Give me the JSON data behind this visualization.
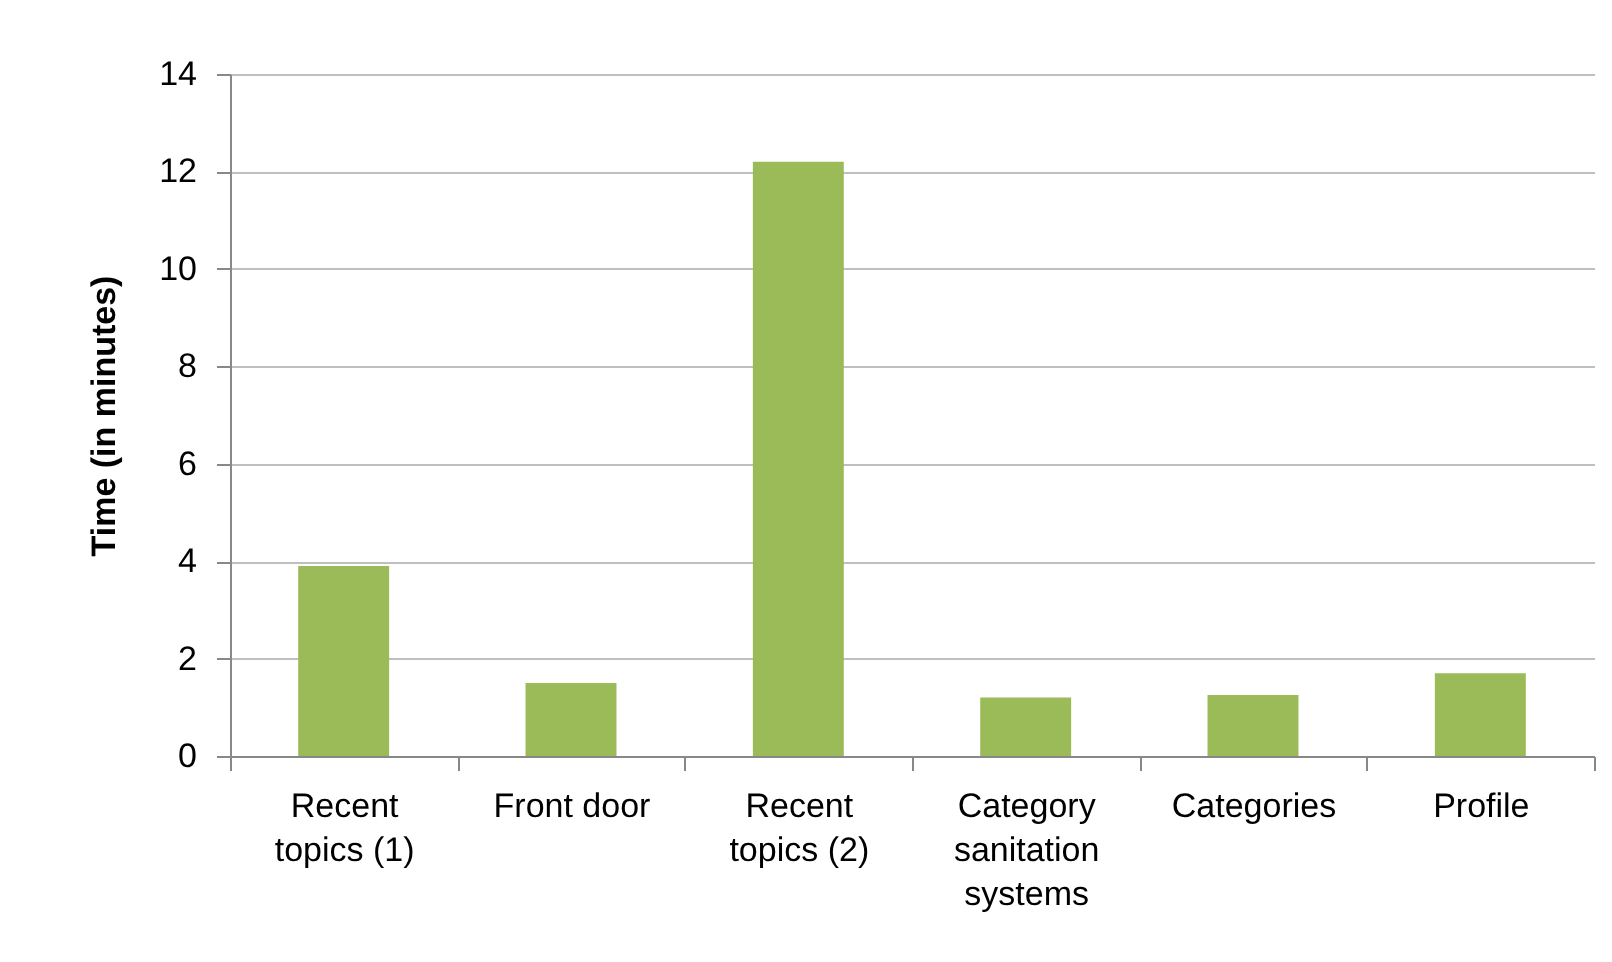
{
  "chart_data": {
    "type": "bar",
    "ylabel": "Time (in minutes)",
    "categories": [
      "Recent topics (1)",
      "Front door",
      "Recent topics (2)",
      "Category sanitation systems",
      "Categories",
      "Profile"
    ],
    "values": [
      3.9,
      1.5,
      12.2,
      1.2,
      1.25,
      1.7
    ],
    "color": "#9bbb59",
    "ylim": [
      0,
      14
    ],
    "yticks": [
      0,
      2,
      4,
      6,
      8,
      10,
      12,
      14
    ],
    "grid": "y"
  }
}
